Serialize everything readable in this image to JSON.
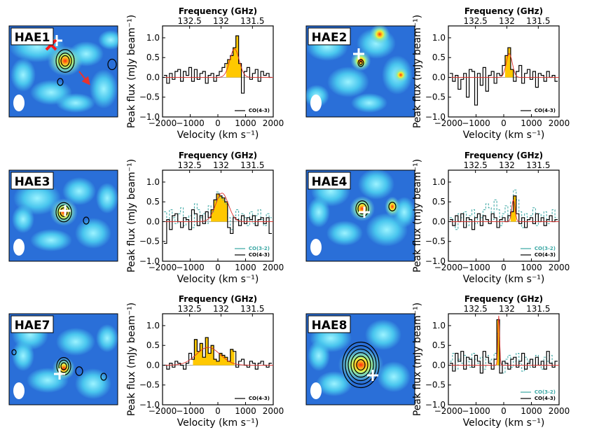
{
  "colors": {
    "map_bg": "#2a6fd8",
    "fill": "#ffc800",
    "co43": "#000000",
    "co32": "#3aa7a4",
    "fit": "#e0302b",
    "cross": "#ff1a1a",
    "arrow": "#e8332e"
  },
  "common": {
    "freq_label": "Frequency (GHz)",
    "xlabel": "Velocity (km s⁻¹)",
    "ylabel": "Peak flux (mJy beam⁻¹)",
    "legend_co43": "CO(4-3)",
    "legend_co32": "CO(3-2)",
    "xticks": [
      -2000,
      -1000,
      0,
      1000,
      2000
    ],
    "xtick_labels": [
      "−2000",
      "−1000",
      "0",
      "1000",
      "2000"
    ],
    "yticks": [
      -1.0,
      -0.5,
      0.0,
      0.5,
      1.0
    ],
    "ytick_labels": [
      "−1.0",
      "−0.5",
      "0.0",
      "0.5",
      "1.0"
    ],
    "freq_ticks": [
      132.5,
      132,
      131.5
    ],
    "freq_tick_labels": [
      "132.5",
      "132",
      "131.5"
    ],
    "xlim": [
      -2000,
      2000
    ],
    "ylim": [
      -1.0,
      1.3
    ]
  },
  "chart_data": [
    {
      "type": "line",
      "title": "HAE1",
      "has_co32": false,
      "co43_x": [
        -1900,
        -1800,
        -1700,
        -1600,
        -1500,
        -1400,
        -1300,
        -1200,
        -1100,
        -1000,
        -900,
        -800,
        -700,
        -600,
        -500,
        -400,
        -300,
        -200,
        -100,
        0,
        100,
        200,
        300,
        400,
        500,
        600,
        700,
        800,
        900,
        1000,
        1100,
        1200,
        1300,
        1400,
        1500,
        1600,
        1700,
        1800,
        1900
      ],
      "co43_y": [
        0.05,
        -0.15,
        0.1,
        -0.05,
        0.15,
        0.2,
        -0.1,
        0.15,
        0.05,
        0.25,
        -0.1,
        0.2,
        -0.05,
        0.1,
        0.15,
        -0.15,
        0.05,
        0.1,
        -0.1,
        0.05,
        0.15,
        0.25,
        0.35,
        0.45,
        0.55,
        0.75,
        1.05,
        0.35,
        -0.4,
        0.15,
        0.25,
        -0.05,
        0.1,
        0.2,
        -0.1,
        0.15,
        0.05,
        0.1,
        0.0
      ],
      "fill_range": [
        300,
        900
      ],
      "fit": {
        "amp": 0.72,
        "center": 600,
        "sigma": 170
      }
    },
    {
      "type": "line",
      "title": "HAE2",
      "has_co32": false,
      "co43_x": [
        -1900,
        -1800,
        -1700,
        -1600,
        -1500,
        -1400,
        -1300,
        -1200,
        -1100,
        -1000,
        -900,
        -800,
        -700,
        -600,
        -500,
        -400,
        -300,
        -200,
        -100,
        0,
        100,
        200,
        300,
        400,
        500,
        600,
        700,
        800,
        900,
        1000,
        1100,
        1200,
        1300,
        1400,
        1500,
        1600,
        1700,
        1800,
        1900
      ],
      "co43_y": [
        0.1,
        -0.1,
        0.05,
        -0.3,
        -0.05,
        0.1,
        -0.5,
        0.2,
        0.15,
        -0.7,
        0.1,
        -0.2,
        0.25,
        -0.35,
        0.05,
        0.15,
        -0.15,
        0.1,
        0.05,
        0.3,
        0.55,
        0.75,
        0.2,
        -0.1,
        0.15,
        0.3,
        -0.15,
        0.1,
        0.2,
        -0.05,
        0.15,
        -0.25,
        0.1,
        0.05,
        -0.1,
        0.15,
        0.0,
        0.05,
        -0.1
      ],
      "fill_range": [
        50,
        400
      ],
      "fit": {
        "amp": 0.6,
        "center": 200,
        "sigma": 110
      }
    },
    {
      "type": "line",
      "title": "HAE3",
      "has_co32": true,
      "co43_x": [
        -1900,
        -1800,
        -1700,
        -1600,
        -1500,
        -1400,
        -1300,
        -1200,
        -1100,
        -1000,
        -900,
        -800,
        -700,
        -600,
        -500,
        -400,
        -300,
        -200,
        -100,
        0,
        100,
        200,
        300,
        400,
        500,
        600,
        700,
        800,
        900,
        1000,
        1100,
        1200,
        1300,
        1400,
        1500,
        1600,
        1700,
        1800,
        1900
      ],
      "co43_y": [
        -0.55,
        0.05,
        -0.2,
        0.15,
        0.2,
        0.0,
        -0.15,
        0.1,
        0.05,
        -0.2,
        0.3,
        0.2,
        -0.1,
        0.15,
        -0.05,
        0.25,
        0.1,
        0.3,
        0.55,
        0.7,
        0.65,
        0.6,
        0.5,
        -0.15,
        -0.3,
        0.1,
        0.05,
        -0.1,
        0.15,
        -0.05,
        0.1,
        0.05,
        0.15,
        -0.1,
        0.05,
        0.1,
        -0.05,
        0.1,
        -0.3
      ],
      "co32_y": [
        0.25,
        0.05,
        0.3,
        0.1,
        -0.05,
        0.2,
        0.35,
        -0.1,
        0.1,
        0.15,
        -0.15,
        0.45,
        0.3,
        0.1,
        0.2,
        -0.05,
        0.4,
        0.25,
        0.5,
        0.75,
        0.6,
        0.55,
        0.45,
        0.1,
        -0.2,
        0.15,
        0.3,
        0.05,
        0.2,
        0.1,
        -0.1,
        0.25,
        -0.05,
        0.15,
        0.3,
        0.05,
        -0.1,
        0.2,
        0.1
      ],
      "fill_range": [
        -250,
        450
      ],
      "fit": {
        "amp": 0.72,
        "center": 150,
        "sigma": 230
      }
    },
    {
      "type": "line",
      "title": "HAE4",
      "has_co32": true,
      "co43_x": [
        -1900,
        -1800,
        -1700,
        -1600,
        -1500,
        -1400,
        -1300,
        -1200,
        -1100,
        -1000,
        -900,
        -800,
        -700,
        -600,
        -500,
        -400,
        -300,
        -200,
        -100,
        0,
        100,
        200,
        300,
        400,
        500,
        600,
        700,
        800,
        900,
        1000,
        1100,
        1200,
        1300,
        1400,
        1500,
        1600,
        1700,
        1800,
        1900
      ],
      "co43_y": [
        0.05,
        -0.1,
        0.15,
        0.0,
        0.2,
        -0.15,
        0.1,
        0.05,
        -0.2,
        0.1,
        0.2,
        -0.1,
        0.15,
        0.05,
        -0.05,
        0.2,
        0.1,
        -0.15,
        0.05,
        0.1,
        0.0,
        0.15,
        0.25,
        0.65,
        0.2,
        -0.05,
        0.1,
        -0.15,
        0.05,
        0.1,
        -0.05,
        0.2,
        0.0,
        0.1,
        -0.1,
        0.05,
        0.15,
        0.0,
        0.05
      ],
      "co32_y": [
        0.1,
        0.05,
        -0.2,
        0.2,
        0.1,
        0.25,
        -0.1,
        0.15,
        0.3,
        -0.05,
        0.2,
        0.1,
        0.3,
        0.45,
        0.35,
        0.05,
        0.55,
        0.3,
        -0.1,
        0.2,
        0.4,
        0.1,
        0.5,
        0.8,
        0.55,
        0.25,
        -0.15,
        0.2,
        0.05,
        0.15,
        0.35,
        -0.1,
        0.2,
        0.1,
        0.25,
        -0.05,
        0.15,
        0.3,
        0.1
      ],
      "fill_range": [
        250,
        450
      ],
      "fit": {
        "amp": 0.55,
        "center": 350,
        "sigma": 60
      }
    },
    {
      "type": "line",
      "title": "HAE7",
      "has_co32": false,
      "co43_x": [
        -1900,
        -1800,
        -1700,
        -1600,
        -1500,
        -1400,
        -1300,
        -1200,
        -1100,
        -1000,
        -900,
        -800,
        -700,
        -600,
        -500,
        -400,
        -300,
        -200,
        -100,
        0,
        100,
        200,
        300,
        400,
        500,
        600,
        700,
        800,
        900,
        1000,
        1100,
        1200,
        1300,
        1400,
        1500,
        1600,
        1700,
        1800,
        1900
      ],
      "co43_y": [
        0.0,
        -0.1,
        0.05,
        -0.05,
        0.1,
        0.05,
        0.0,
        -0.1,
        0.05,
        0.3,
        0.15,
        0.65,
        0.35,
        0.55,
        0.2,
        0.7,
        0.3,
        0.5,
        0.15,
        0.1,
        0.3,
        0.25,
        0.2,
        0.1,
        0.4,
        0.35,
        -0.05,
        0.1,
        0.15,
        0.0,
        -0.05,
        0.1,
        0.05,
        -0.1,
        0.05,
        0.1,
        0.0,
        -0.05,
        0.05
      ],
      "fill_range": [
        -900,
        600
      ],
      "fit": {
        "amp": 0.45,
        "center": -350,
        "sigma": 430
      }
    },
    {
      "type": "line",
      "title": "HAE8",
      "has_co32": true,
      "co43_x": [
        -1900,
        -1800,
        -1700,
        -1600,
        -1500,
        -1400,
        -1300,
        -1200,
        -1100,
        -1000,
        -900,
        -800,
        -700,
        -600,
        -500,
        -400,
        -300,
        -200,
        -100,
        0,
        100,
        200,
        300,
        400,
        500,
        600,
        700,
        800,
        900,
        1000,
        1100,
        1200,
        1300,
        1400,
        1500,
        1600,
        1700,
        1800,
        1900
      ],
      "co43_y": [
        0.05,
        -0.15,
        0.3,
        0.1,
        0.35,
        -0.1,
        0.2,
        0.15,
        -0.05,
        0.25,
        0.1,
        -0.2,
        0.35,
        0.2,
        0.05,
        -0.1,
        0.15,
        1.15,
        -0.2,
        0.1,
        0.05,
        -0.1,
        0.15,
        0.2,
        -0.05,
        0.1,
        0.3,
        -0.1,
        0.05,
        0.15,
        -0.05,
        0.2,
        0.0,
        0.1,
        -0.1,
        0.35,
        0.05,
        -0.05,
        0.1
      ],
      "co32_y": [
        0.1,
        0.3,
        -0.1,
        0.15,
        0.05,
        0.25,
        0.1,
        -0.05,
        0.3,
        0.15,
        0.05,
        0.2,
        -0.1,
        0.25,
        0.1,
        0.15,
        0.3,
        0.8,
        0.05,
        -0.2,
        0.15,
        0.25,
        -0.05,
        0.1,
        0.3,
        0.05,
        -0.15,
        0.2,
        0.1,
        -0.05,
        0.15,
        0.25,
        0.05,
        -0.1,
        0.2,
        0.1,
        0.25,
        -0.05,
        0.1
      ],
      "fill_range": [
        -250,
        -120
      ],
      "fit": {
        "amp": 1.25,
        "center": -180,
        "sigma": 30
      }
    }
  ]
}
